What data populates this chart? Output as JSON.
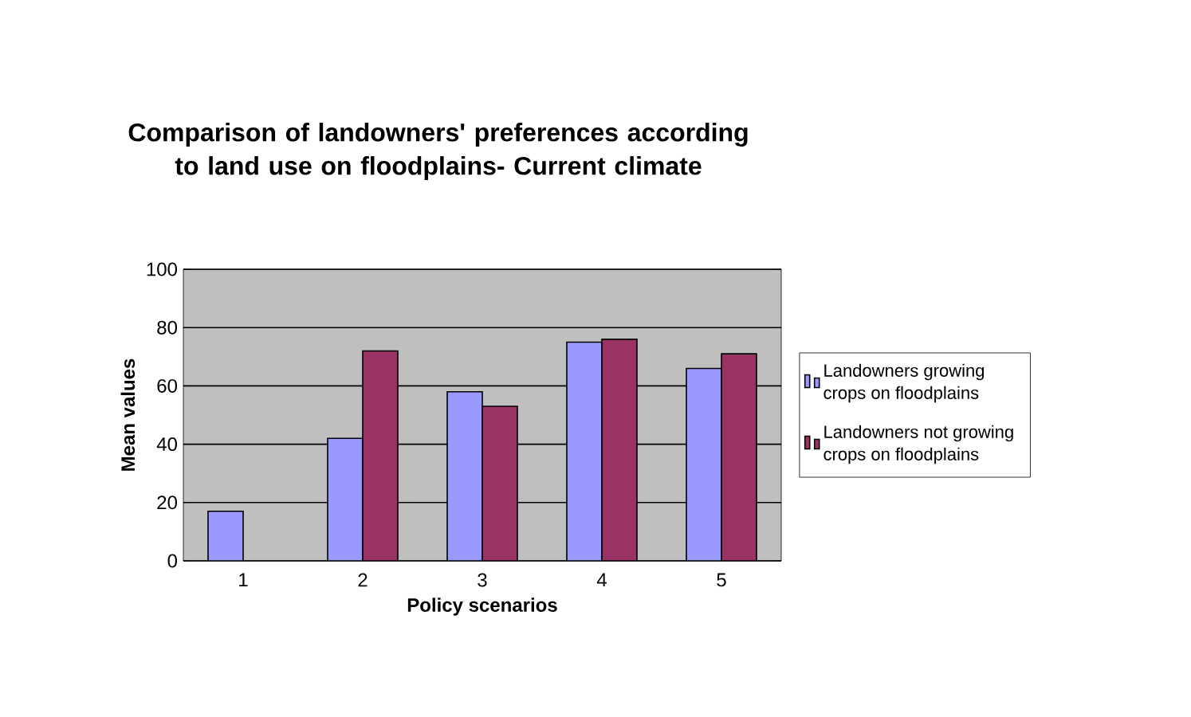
{
  "chart_data": {
    "type": "bar",
    "title": "Comparison of landowners' preferences according to land use on floodplains- Current climate",
    "xlabel": "Policy scenarios",
    "ylabel": "Mean values",
    "categories": [
      "1",
      "2",
      "3",
      "4",
      "5"
    ],
    "series": [
      {
        "name": "Landowners growing crops on floodplains",
        "color": "#9999ff",
        "values": [
          17,
          42,
          58,
          75,
          66
        ]
      },
      {
        "name": "Landowners not growing crops on floodplains",
        "color": "#993366",
        "values": [
          null,
          72,
          53,
          76,
          71
        ]
      }
    ],
    "ylim": [
      0,
      100
    ],
    "yticks": [
      0,
      20,
      40,
      60,
      80,
      100
    ],
    "grid": "y",
    "legend": "right"
  }
}
